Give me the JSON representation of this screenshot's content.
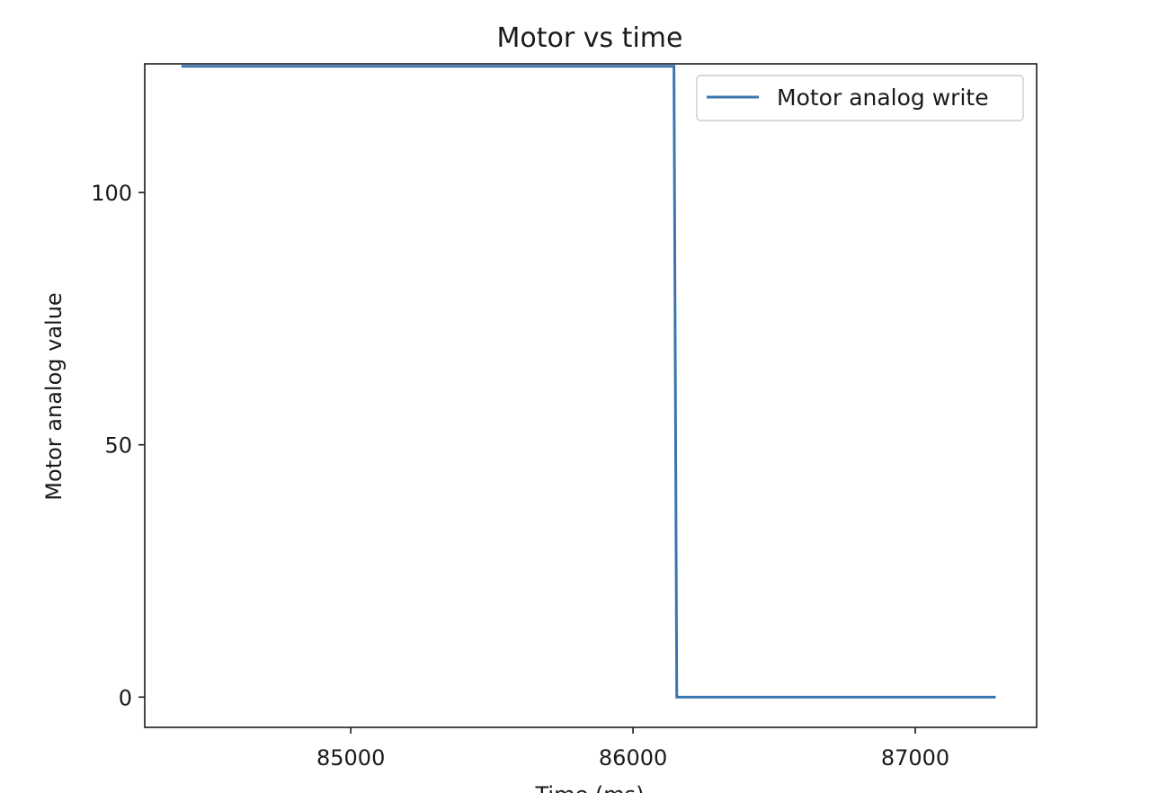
{
  "chart_data": {
    "type": "line",
    "title": "Motor vs time",
    "xlabel": "Time (ms)",
    "ylabel": "Motor analog value",
    "xlim": [
      84270,
      87430
    ],
    "ylim": [
      -6,
      125.5
    ],
    "x_ticks": [
      85000,
      86000,
      87000
    ],
    "x_tick_labels": [
      "85000",
      "86000",
      "87000"
    ],
    "y_ticks": [
      0,
      50,
      100
    ],
    "y_tick_labels": [
      "0",
      "50",
      "100"
    ],
    "grid": false,
    "legend_position": "upper right",
    "series": [
      {
        "name": "Motor analog write",
        "color": "#3b75af",
        "x": [
          84400,
          86145,
          86155,
          87285
        ],
        "y": [
          125,
          125,
          0,
          0
        ]
      }
    ]
  }
}
